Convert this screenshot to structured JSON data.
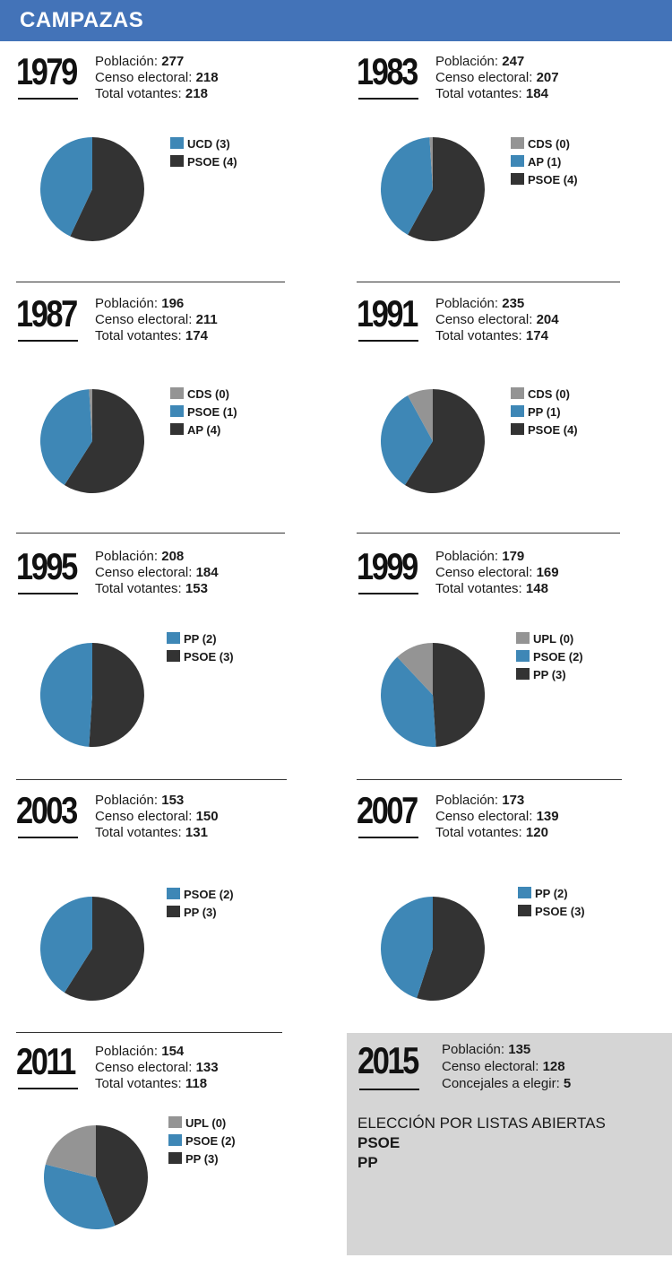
{
  "header": {
    "title": "CAMPAZAS"
  },
  "labels": {
    "poblacion": "Población:",
    "censo": "Censo electoral:",
    "votantes": "Total votantes:",
    "concejales": "Concejales a elegir:"
  },
  "colors": {
    "gray": "#949494",
    "blue": "#3e87b6",
    "dark": "#333333"
  },
  "chart_data": [
    {
      "type": "pie",
      "year": "1979",
      "poblacion": "277",
      "censo": "218",
      "votantes": "218",
      "slices": [
        {
          "label": "UCD (3)",
          "value": 43,
          "color": "#3e87b6"
        },
        {
          "label": "PSOE (4)",
          "value": 57,
          "color": "#333333"
        }
      ]
    },
    {
      "type": "pie",
      "year": "1983",
      "poblacion": "247",
      "censo": "207",
      "votantes": "184",
      "slices": [
        {
          "label": "CDS (0)",
          "value": 1,
          "color": "#949494"
        },
        {
          "label": "AP (1)",
          "value": 41,
          "color": "#3e87b6"
        },
        {
          "label": "PSOE (4)",
          "value": 58,
          "color": "#333333"
        }
      ]
    },
    {
      "type": "pie",
      "year": "1987",
      "poblacion": "196",
      "censo": "211",
      "votantes": "174",
      "slices": [
        {
          "label": "CDS (0)",
          "value": 1,
          "color": "#949494"
        },
        {
          "label": "PSOE (1)",
          "value": 40,
          "color": "#3e87b6"
        },
        {
          "label": "AP (4)",
          "value": 59,
          "color": "#333333"
        }
      ]
    },
    {
      "type": "pie",
      "year": "1991",
      "poblacion": "235",
      "censo": "204",
      "votantes": "174",
      "slices": [
        {
          "label": "CDS (0)",
          "value": 8,
          "color": "#949494"
        },
        {
          "label": "PP (1)",
          "value": 33,
          "color": "#3e87b6"
        },
        {
          "label": "PSOE (4)",
          "value": 59,
          "color": "#333333"
        }
      ]
    },
    {
      "type": "pie",
      "year": "1995",
      "poblacion": "208",
      "censo": "184",
      "votantes": "153",
      "slices": [
        {
          "label": "PP (2)",
          "value": 49,
          "color": "#3e87b6"
        },
        {
          "label": "PSOE (3)",
          "value": 51,
          "color": "#333333"
        }
      ]
    },
    {
      "type": "pie",
      "year": "1999",
      "poblacion": "179",
      "censo": "169",
      "votantes": "148",
      "slices": [
        {
          "label": "UPL (0)",
          "value": 12,
          "color": "#949494"
        },
        {
          "label": "PSOE (2)",
          "value": 39,
          "color": "#3e87b6"
        },
        {
          "label": "PP (3)",
          "value": 49,
          "color": "#333333"
        }
      ]
    },
    {
      "type": "pie",
      "year": "2003",
      "poblacion": "153",
      "censo": "150",
      "votantes": "131",
      "slices": [
        {
          "label": "PSOE (2)",
          "value": 41,
          "color": "#3e87b6"
        },
        {
          "label": "PP (3)",
          "value": 59,
          "color": "#333333"
        }
      ]
    },
    {
      "type": "pie",
      "year": "2007",
      "poblacion": "173",
      "censo": "139",
      "votantes": "120",
      "slices": [
        {
          "label": "PP (2)",
          "value": 45,
          "color": "#3e87b6"
        },
        {
          "label": "PSOE (3)",
          "value": 55,
          "color": "#333333"
        }
      ]
    },
    {
      "type": "pie",
      "year": "2011",
      "poblacion": "154",
      "censo": "133",
      "votantes": "118",
      "slices": [
        {
          "label": "UPL (0)",
          "value": 21,
          "color": "#949494"
        },
        {
          "label": "PSOE (2)",
          "value": 35,
          "color": "#3e87b6"
        },
        {
          "label": "PP (3)",
          "value": 44,
          "color": "#333333"
        }
      ]
    }
  ],
  "election_2015": {
    "year": "2015",
    "poblacion": "135",
    "censo": "128",
    "concejales": "5",
    "note_title": "ELECCIÓN POR LISTAS ABIERTAS",
    "lists": [
      "PSOE",
      "PP"
    ]
  }
}
